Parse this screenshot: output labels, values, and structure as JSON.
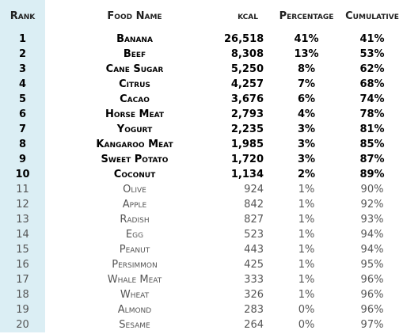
{
  "table": {
    "header": [
      "Rank",
      "Food Name",
      "kcal",
      "Percentage",
      "Cumulative"
    ],
    "rows": [
      [
        "1",
        "Banana",
        "26,518",
        "41%",
        "41%"
      ],
      [
        "2",
        "Beef",
        "8,308",
        "13%",
        "53%"
      ],
      [
        "3",
        "Cane Sugar",
        "5,250",
        "8%",
        "62%"
      ],
      [
        "4",
        "Citrus",
        "4,257",
        "7%",
        "68%"
      ],
      [
        "5",
        "Cacao",
        "3,676",
        "6%",
        "74%"
      ],
      [
        "6",
        "Horse Meat",
        "2,793",
        "4%",
        "78%"
      ],
      [
        "7",
        "Yogurt",
        "2,235",
        "3%",
        "81%"
      ],
      [
        "8",
        "Kangaroo Meat",
        "1,985",
        "3%",
        "85%"
      ],
      [
        "9",
        "Sweet Potato",
        "1,720",
        "3%",
        "87%"
      ],
      [
        "10",
        "Coconut",
        "1,134",
        "2%",
        "89%"
      ],
      [
        "11",
        "Olive",
        "924",
        "1%",
        "90%"
      ],
      [
        "12",
        "Apple",
        "842",
        "1%",
        "92%"
      ],
      [
        "13",
        "Radish",
        "827",
        "1%",
        "93%"
      ],
      [
        "14",
        "Egg",
        "523",
        "1%",
        "94%"
      ],
      [
        "15",
        "Peanut",
        "443",
        "1%",
        "94%"
      ],
      [
        "16",
        "Persimmon",
        "425",
        "1%",
        "95%"
      ],
      [
        "17",
        "Whale Meat",
        "333",
        "1%",
        "96%"
      ],
      [
        "18",
        "Wheat",
        "326",
        "1%",
        "96%"
      ],
      [
        "19",
        "Almond",
        "283",
        "0%",
        "96%"
      ],
      [
        "20",
        "Sesame",
        "264",
        "0%",
        "97%"
      ]
    ]
  }
}
